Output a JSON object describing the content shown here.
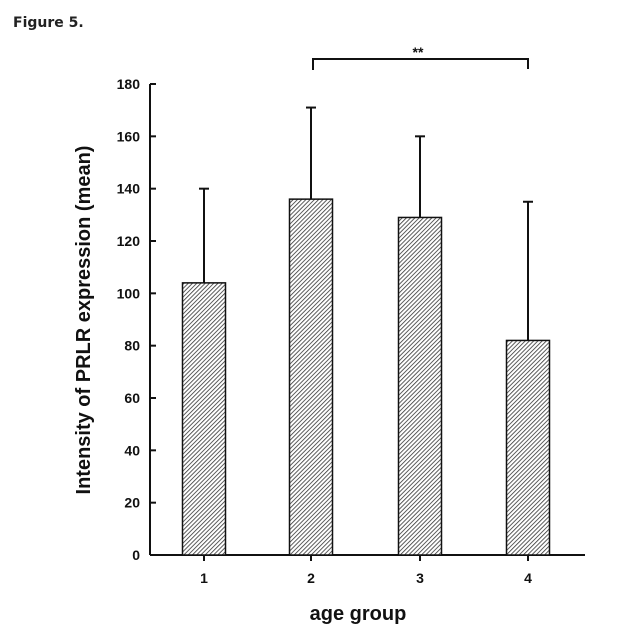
{
  "figure_label": "Figure 5.",
  "chart_data": {
    "type": "bar",
    "categories": [
      "1",
      "2",
      "3",
      "4"
    ],
    "values": [
      104,
      136,
      129,
      82
    ],
    "error_upper": [
      140,
      171,
      160,
      135
    ],
    "title": "",
    "xlabel": "age group",
    "ylabel": "Intensity of PRLR expression (mean)",
    "ylim": [
      0,
      180
    ],
    "yticks": [
      0,
      20,
      40,
      60,
      80,
      100,
      120,
      140,
      160,
      180
    ],
    "grid": false,
    "bar_fill": "hatched",
    "annotations": [
      {
        "text": "**",
        "between": [
          "2",
          "4"
        ]
      }
    ]
  }
}
